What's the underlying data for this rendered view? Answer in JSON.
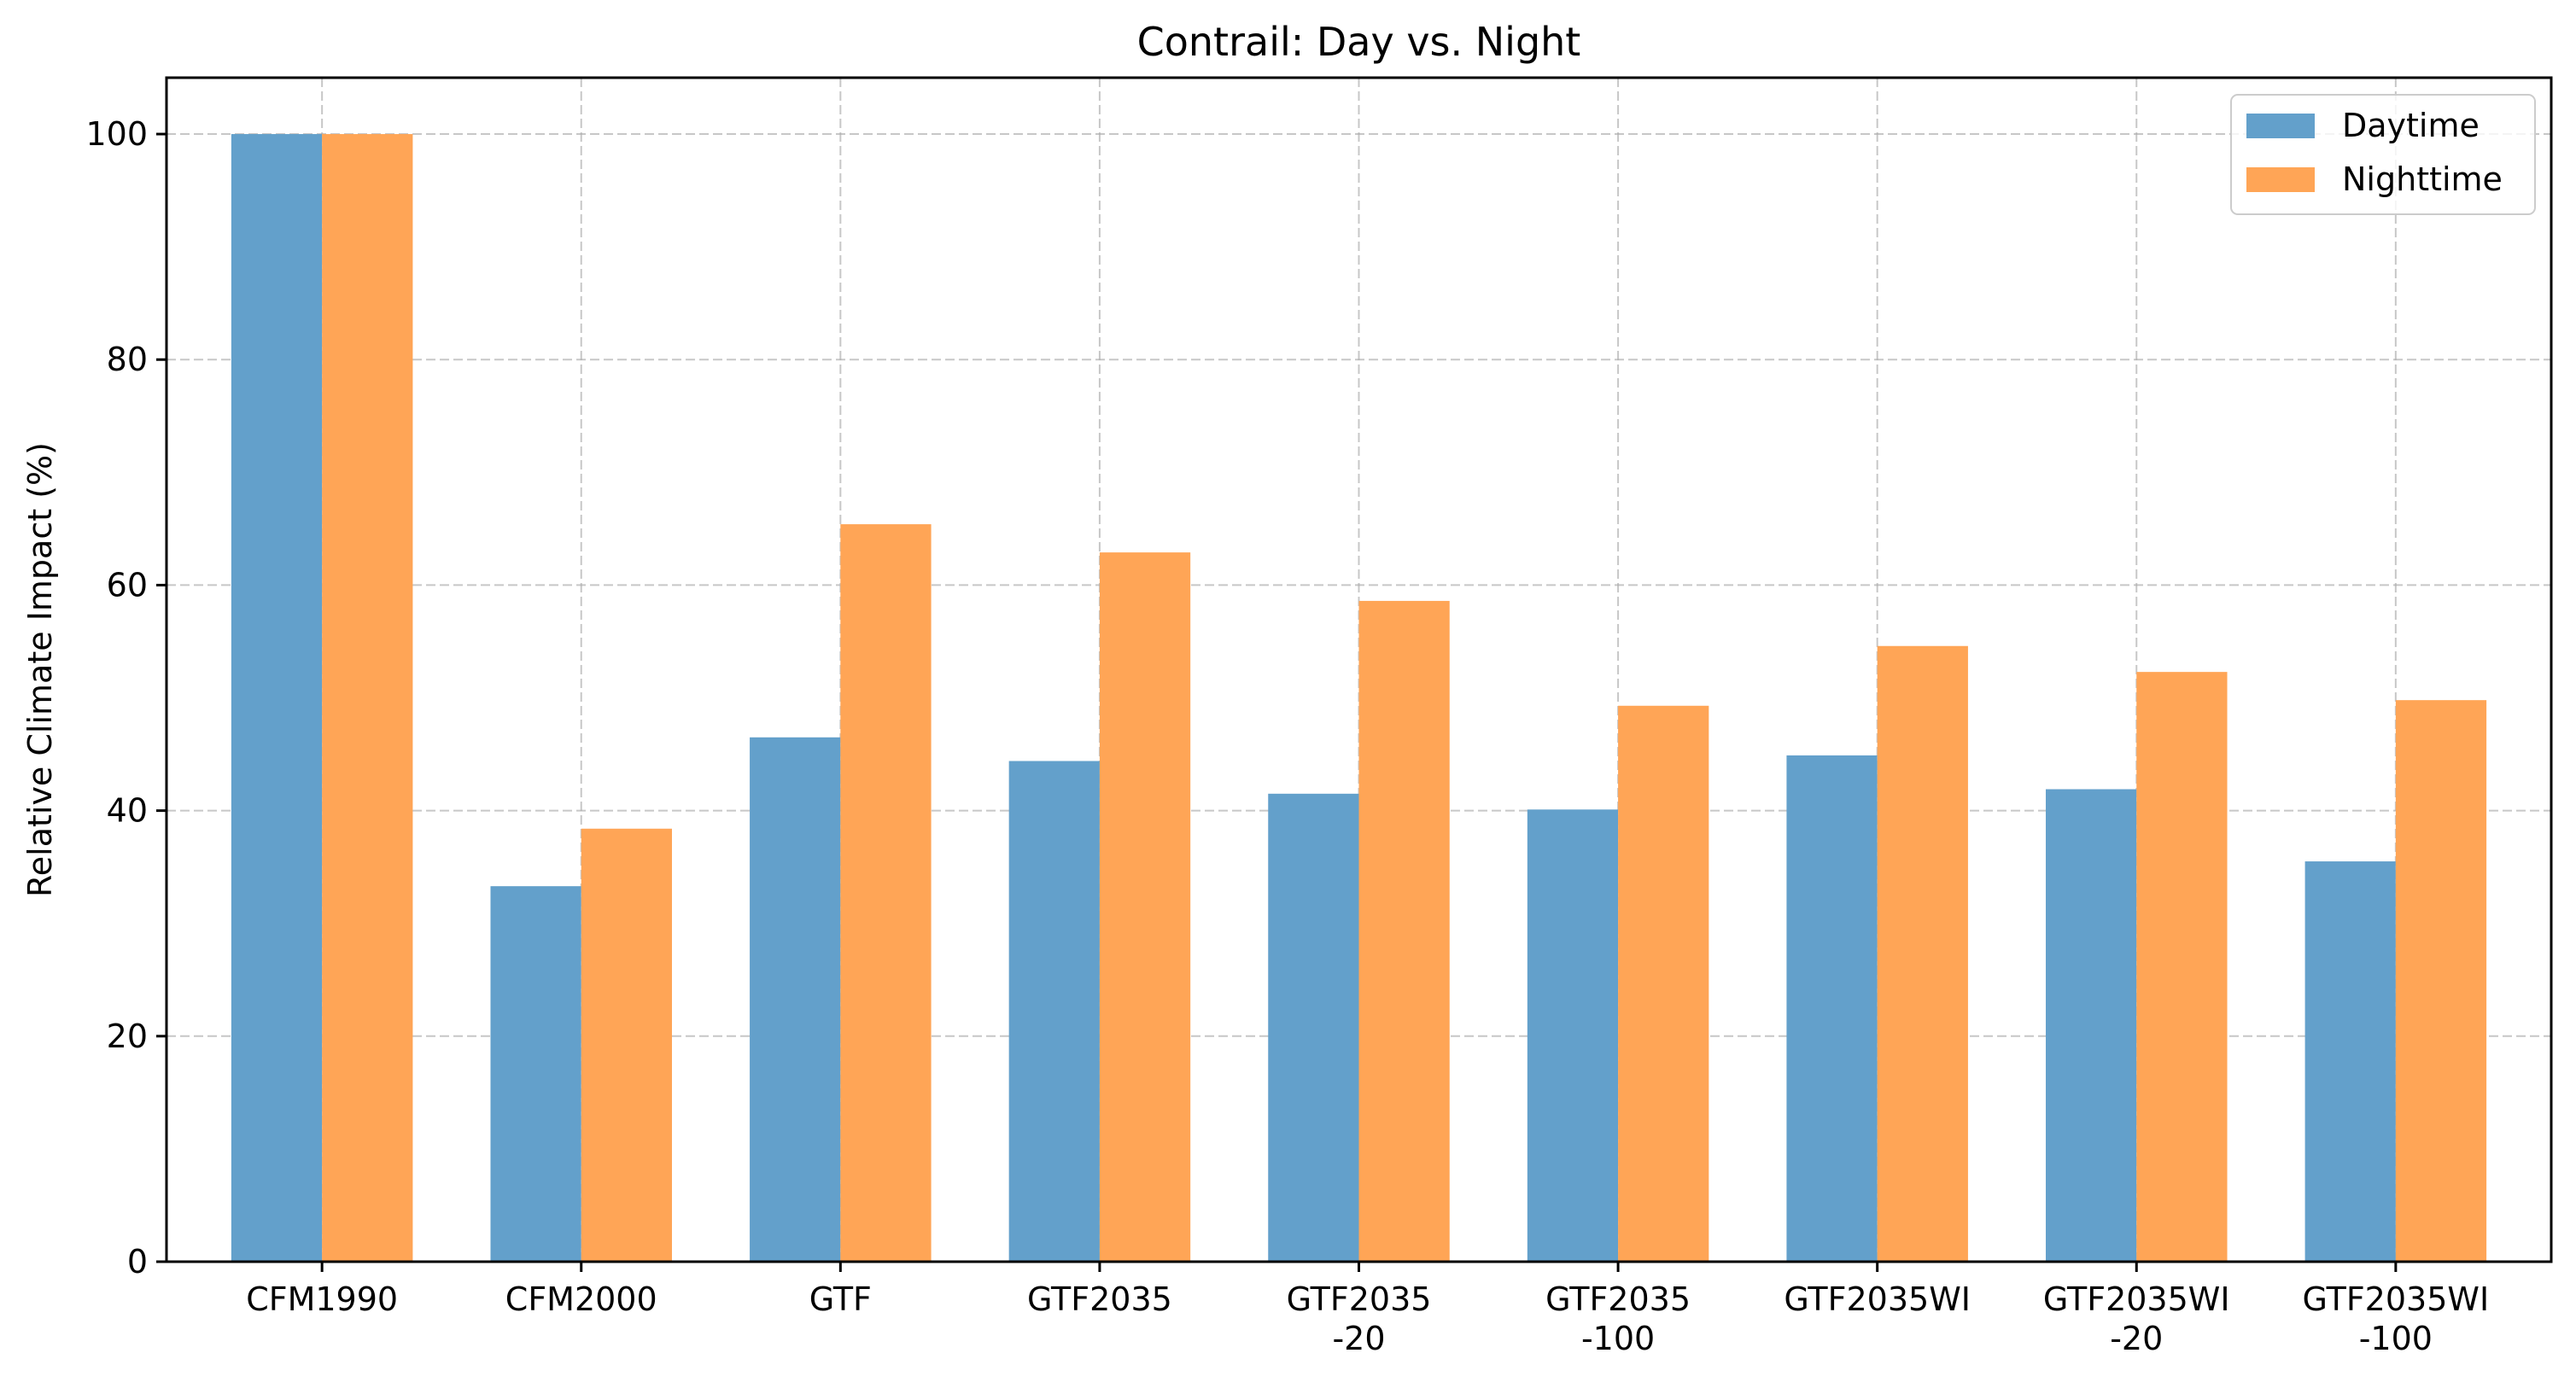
{
  "chart_data": {
    "type": "bar",
    "title": "Contrail: Day vs. Night",
    "xlabel": "",
    "ylabel": "Relative Climate Impact (%)",
    "ylim": [
      0,
      105
    ],
    "yticks": [
      "0",
      "20",
      "40",
      "60",
      "80",
      "100"
    ],
    "grid": true,
    "legend_position": "top-right",
    "categories": [
      [
        "CFM1990"
      ],
      [
        "CFM2000"
      ],
      [
        "GTF"
      ],
      [
        "GTF2035"
      ],
      [
        "GTF2035",
        "-20"
      ],
      [
        "GTF2035",
        "-100"
      ],
      [
        "GTF2035WI"
      ],
      [
        "GTF2035WI",
        "-20"
      ],
      [
        "GTF2035WI",
        "-100"
      ]
    ],
    "series": [
      {
        "name": "Daytime",
        "color": "#63a0cb",
        "values": [
          100,
          33.3,
          46.5,
          44.4,
          41.5,
          40.1,
          44.9,
          41.9,
          35.5
        ]
      },
      {
        "name": "Nighttime",
        "color": "#ffa556",
        "values": [
          100,
          38.4,
          65.4,
          62.9,
          58.6,
          49.3,
          54.6,
          52.3,
          49.8
        ]
      }
    ]
  }
}
